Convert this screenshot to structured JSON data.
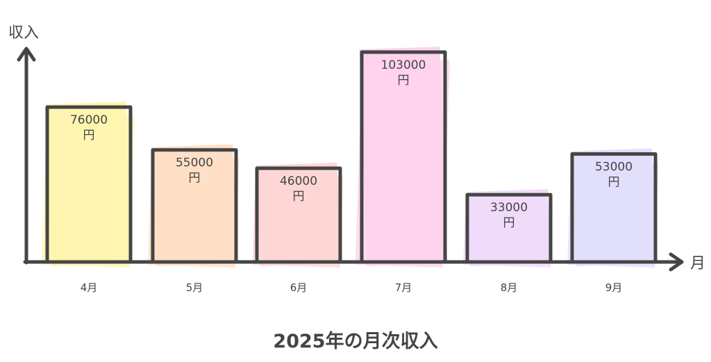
{
  "chart_data": {
    "type": "bar",
    "title": "2025年の月次収入",
    "xlabel": "月",
    "ylabel": "収入",
    "categories": [
      "4月",
      "5月",
      "6月",
      "7月",
      "8月",
      "9月"
    ],
    "values": [
      76000,
      55000,
      46000,
      103000,
      33000,
      53000
    ],
    "data_labels": [
      "76000",
      "55000",
      "46000",
      "103000",
      "33000",
      "53000"
    ],
    "unit": "円",
    "ylim": [
      0,
      105000
    ],
    "grid": false,
    "legend": "none",
    "colors": [
      "#fff5b0",
      "#ffe0c6",
      "#ffd6d6",
      "#ffd3ee",
      "#f0dbfb",
      "#e2defc"
    ],
    "stroke_color": "#454545"
  }
}
